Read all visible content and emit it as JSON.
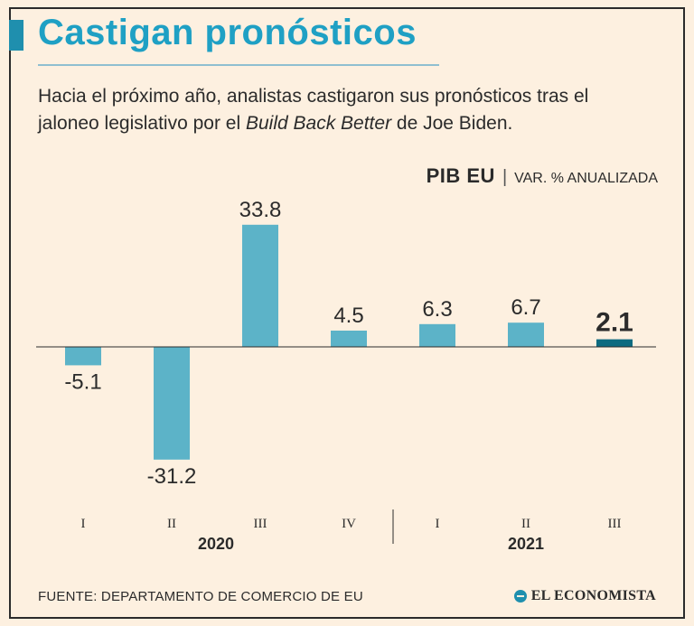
{
  "header": {
    "title": "Castigan pronósticos",
    "subtitle_pre": "Hacia el próximo año, analistas castigaron sus pronósticos tras el jaloneo legislativo por el ",
    "subtitle_italic": "Build Back Better",
    "subtitle_post": " de Joe Biden."
  },
  "measure": {
    "strong": "PIB EU",
    "separator": "|",
    "unit": "VAR. % ANUALIZADA"
  },
  "colors": {
    "bar": "#5cb3c8",
    "highlight_bar": "#0d6b80",
    "baseline": "#2b2b2b",
    "title": "#1fa0c4"
  },
  "chart_data": {
    "type": "bar",
    "title": "PIB EU",
    "ylabel": "VAR. % ANUALIZADA",
    "xlabel": "",
    "categories": [
      "I",
      "II",
      "III",
      "IV",
      "I",
      "II",
      "III"
    ],
    "groups": [
      {
        "label": "2020",
        "categories": [
          "I",
          "II",
          "III",
          "IV"
        ]
      },
      {
        "label": "2021",
        "categories": [
          "I",
          "II",
          "III"
        ]
      }
    ],
    "values": [
      -5.1,
      -31.2,
      33.8,
      4.5,
      6.3,
      6.7,
      2.1
    ],
    "value_labels": [
      "-5.1",
      "-31.2",
      "33.8",
      "4.5",
      "6.3",
      "6.7",
      "2.1"
    ],
    "highlight_index": 6,
    "ylim": [
      -31.2,
      33.8
    ],
    "grid": false
  },
  "footer": {
    "source": "FUENTE: DEPARTAMENTO DE COMERCIO DE EU",
    "logo": "EL ECONOMISTA"
  }
}
